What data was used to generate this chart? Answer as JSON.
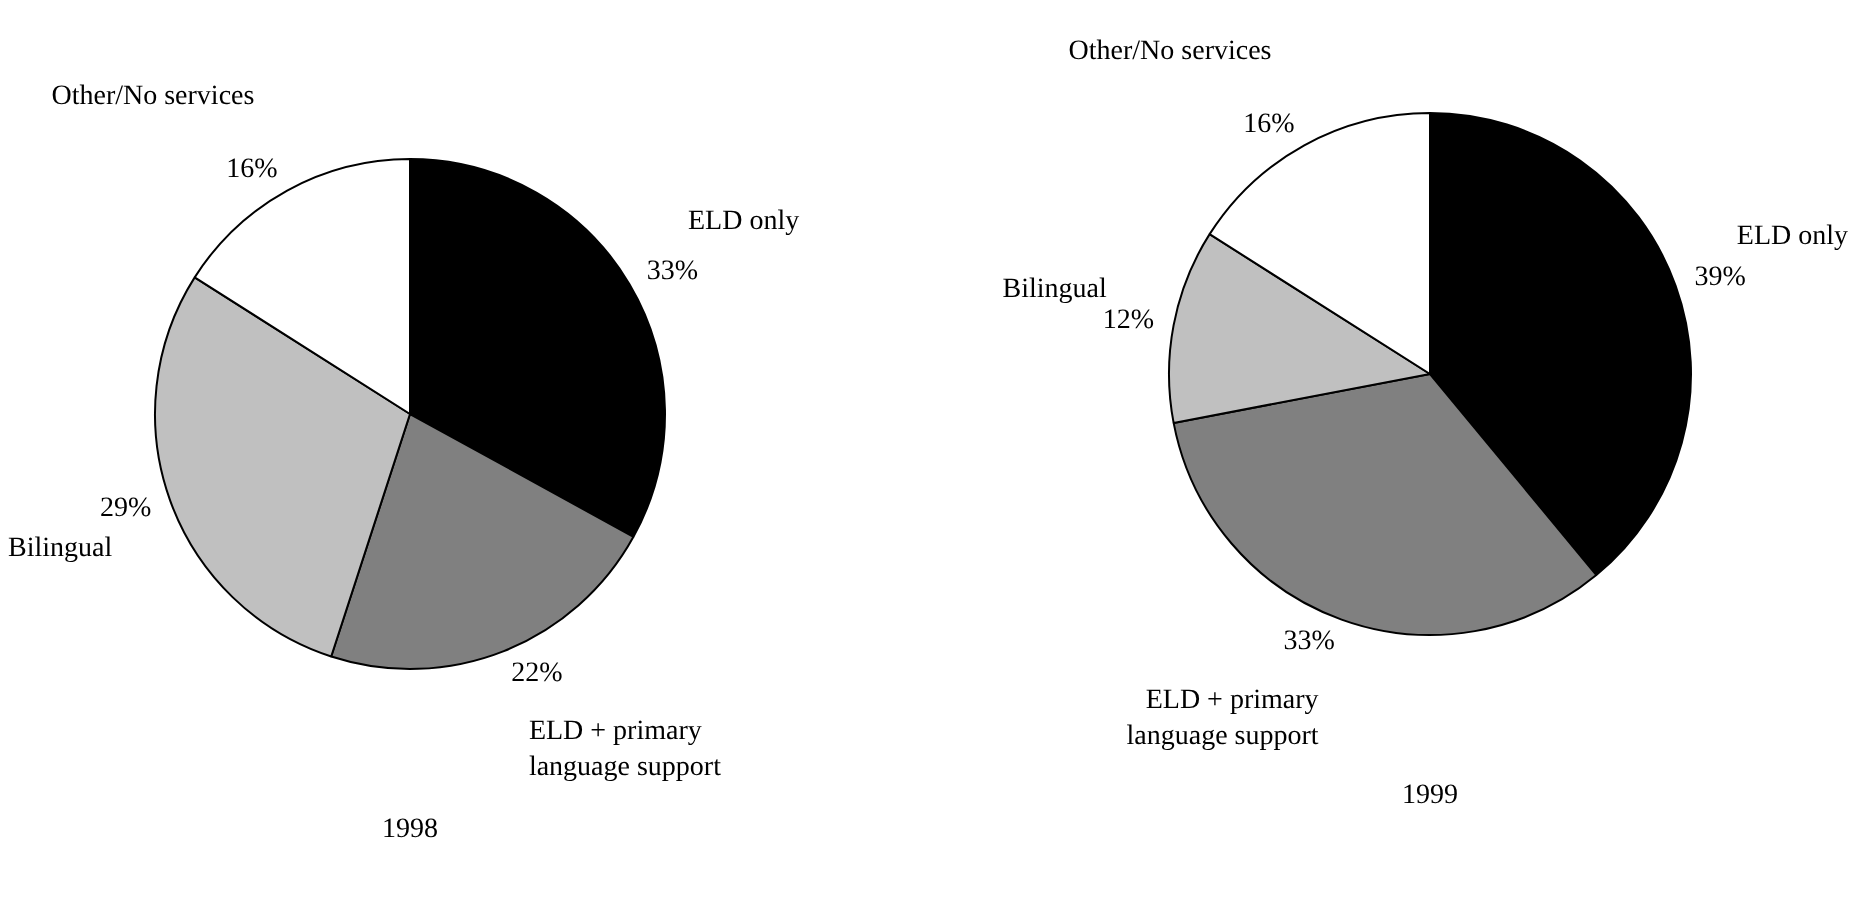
{
  "chart_data": [
    {
      "type": "pie",
      "title": "1998",
      "categories": [
        "ELD only",
        "ELD + primary language support",
        "Bilingual",
        "Other/No services"
      ],
      "values": [
        33,
        22,
        29,
        16
      ],
      "colors": [
        "#000000",
        "#808080",
        "#c0c0c0",
        "#ffffff"
      ],
      "value_labels": [
        "33%",
        "22%",
        "29%",
        "16%"
      ]
    },
    {
      "type": "pie",
      "title": "1999",
      "categories": [
        "ELD only",
        "ELD + primary language support",
        "Bilingual",
        "Other/No services"
      ],
      "values": [
        39,
        33,
        12,
        16
      ],
      "colors": [
        "#000000",
        "#808080",
        "#c0c0c0",
        "#ffffff"
      ],
      "value_labels": [
        "39%",
        "33%",
        "12%",
        "16%"
      ]
    }
  ]
}
